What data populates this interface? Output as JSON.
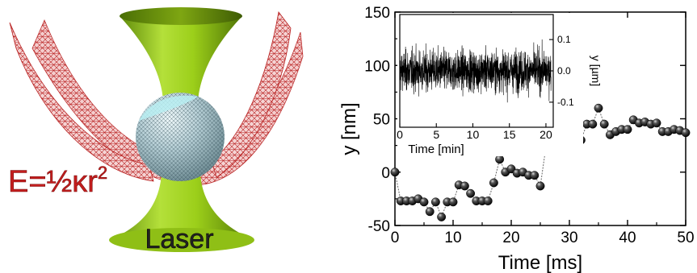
{
  "illustration": {
    "energy_formula": "E=½κr",
    "energy_exponent": "2",
    "laser_label": "Laser",
    "colors": {
      "beam": "#9ccf1a",
      "mesh": "#c02828",
      "sphere": "#a9c4cc",
      "formula": "#c41e1e"
    }
  },
  "chart_data": [
    {
      "type": "scatter",
      "title": "",
      "xlabel": "Time [ms]",
      "ylabel": "y [nm]",
      "xlim": [
        0,
        50
      ],
      "ylim": [
        -50,
        150
      ],
      "xticks": [
        0,
        10,
        20,
        30,
        40,
        50
      ],
      "yticks": [
        -50,
        0,
        50,
        100,
        150
      ],
      "connected": true,
      "marker": "sphere",
      "x": [
        0,
        1,
        2,
        3,
        4,
        5,
        6,
        7,
        8,
        9,
        10,
        11,
        12,
        13,
        14,
        15,
        16,
        17,
        18,
        19,
        20,
        21,
        22,
        23,
        24,
        25,
        26,
        27,
        28,
        29,
        30,
        31,
        32,
        33,
        34,
        35,
        36,
        37,
        38,
        39,
        40,
        41,
        42,
        43,
        44,
        45,
        46,
        47,
        48,
        49,
        50
      ],
      "y": [
        0,
        -27,
        -27,
        -27,
        -25,
        -28,
        -37,
        -28,
        -42,
        -28,
        -28,
        -12,
        -13,
        -20,
        -27,
        -27,
        -27,
        -10,
        12,
        0,
        3,
        -1,
        0,
        -3,
        -3,
        -13,
        25,
        27,
        38,
        25,
        35,
        30,
        30,
        45,
        45,
        60,
        45,
        35,
        38,
        40,
        40,
        49,
        46,
        47,
        45,
        46,
        38,
        38,
        40,
        39,
        37
      ]
    },
    {
      "type": "line",
      "title": "",
      "inset": true,
      "xlabel": "Time [min]",
      "ylabel": "y [µm]",
      "xlim": [
        0,
        21
      ],
      "ylim": [
        -0.18,
        0.18
      ],
      "xticks": [
        0,
        5,
        10,
        15,
        20
      ],
      "yticks": [
        -0.1,
        0.0,
        0.1
      ],
      "series": [
        {
          "values_description_free": true,
          "amplitude_rms": 0.045,
          "peak_extent": 0.15,
          "mean": 0.0
        }
      ]
    }
  ]
}
